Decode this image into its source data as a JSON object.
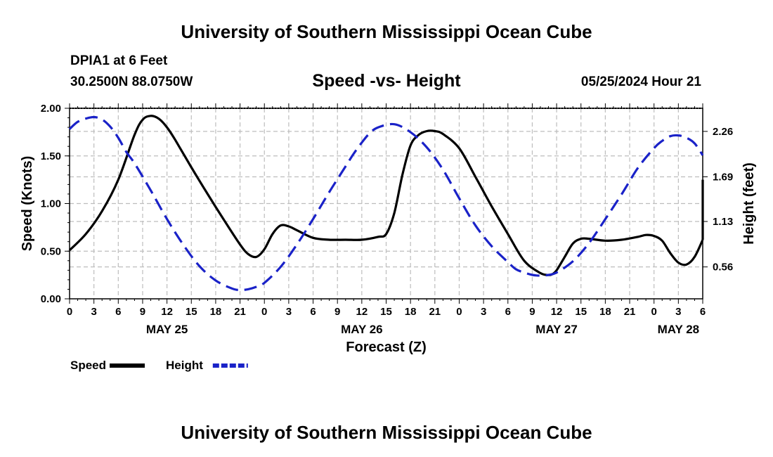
{
  "header": {
    "title": "University of Southern Mississippi Ocean Cube",
    "station": "DPIA1 at 6 Feet",
    "coords": "30.2500N  88.0750W",
    "timestamp": "05/25/2024 Hour 21"
  },
  "footer": {
    "title": "University of Southern Mississippi Ocean Cube"
  },
  "chart_data": {
    "type": "line",
    "title": "Speed -vs- Height",
    "xlabel": "Forecast (Z)",
    "ylabel": "Speed (Knots)",
    "y2label": "Height (feet)",
    "grid": true,
    "x_range_hours": [
      0,
      78
    ],
    "ylim": [
      0,
      2.0
    ],
    "y2lim": [
      0.16,
      2.55
    ],
    "y_ticks": [
      "0.00",
      "0.50",
      "1.00",
      "1.50",
      "2.00"
    ],
    "y2_ticks": [
      "0.56",
      "1.13",
      "1.69",
      "2.26"
    ],
    "x_tick_labels": [
      "0",
      "3",
      "6",
      "9",
      "12",
      "15",
      "18",
      "21",
      "0",
      "3",
      "6",
      "9",
      "12",
      "15",
      "18",
      "21",
      "0",
      "3",
      "6",
      "9",
      "12",
      "15",
      "18",
      "21",
      "0",
      "3",
      "6"
    ],
    "date_labels": [
      {
        "hour": 12,
        "label": "MAY 25"
      },
      {
        "hour": 36,
        "label": "MAY 26"
      },
      {
        "hour": 60,
        "label": "MAY 27"
      },
      {
        "hour": 75,
        "label": "MAY 28"
      }
    ],
    "series": [
      {
        "name": "Speed",
        "axis": "left",
        "color": "#000000",
        "dash": "solid",
        "x": [
          0,
          2,
          4,
          6,
          8,
          9,
          10,
          11,
          12,
          13,
          15,
          17,
          19,
          21,
          22,
          23,
          24,
          25,
          26,
          27,
          28,
          30,
          32,
          34,
          36,
          38,
          39,
          40,
          41,
          42,
          43,
          44,
          45,
          46,
          48,
          50,
          52,
          54,
          56,
          58,
          59,
          59.5,
          60,
          61,
          62,
          63,
          64,
          66,
          68,
          70,
          71,
          72,
          73,
          74,
          75,
          76,
          77,
          78
        ],
        "values": [
          0.51,
          0.68,
          0.92,
          1.25,
          1.72,
          1.88,
          1.92,
          1.89,
          1.8,
          1.67,
          1.38,
          1.1,
          0.83,
          0.57,
          0.47,
          0.44,
          0.52,
          0.68,
          0.77,
          0.76,
          0.72,
          0.64,
          0.62,
          0.62,
          0.62,
          0.65,
          0.68,
          0.9,
          1.3,
          1.61,
          1.72,
          1.76,
          1.76,
          1.73,
          1.58,
          1.28,
          0.97,
          0.68,
          0.4,
          0.27,
          0.25,
          0.26,
          0.3,
          0.44,
          0.58,
          0.63,
          0.63,
          0.61,
          0.62,
          0.65,
          0.67,
          0.66,
          0.61,
          0.48,
          0.38,
          0.36,
          0.44,
          0.62
        ],
        "extra": {
          "x": 78,
          "value": 1.25
        }
      },
      {
        "name": "Height",
        "axis": "right",
        "color": "#1a22c8",
        "dash": "dashed",
        "x": [
          0,
          1,
          2,
          3,
          4,
          5,
          6,
          7,
          8,
          10,
          12,
          14,
          16,
          18,
          20,
          21,
          22,
          23,
          24,
          26,
          28,
          30,
          32,
          34,
          35,
          36,
          37,
          38,
          40,
          42,
          44,
          46,
          48,
          50,
          52,
          54,
          55,
          56,
          57,
          58,
          59,
          60,
          62,
          64,
          66,
          68,
          70,
          72,
          73,
          74,
          75,
          76,
          77,
          78
        ],
        "values": [
          2.29,
          2.38,
          2.42,
          2.44,
          2.41,
          2.32,
          2.18,
          2.0,
          1.86,
          1.52,
          1.16,
          0.84,
          0.57,
          0.39,
          0.29,
          0.27,
          0.28,
          0.31,
          0.36,
          0.56,
          0.84,
          1.16,
          1.5,
          1.82,
          1.98,
          2.12,
          2.24,
          2.31,
          2.35,
          2.25,
          2.06,
          1.78,
          1.42,
          1.08,
          0.82,
          0.62,
          0.53,
          0.49,
          0.46,
          0.45,
          0.46,
          0.49,
          0.63,
          0.86,
          1.16,
          1.47,
          1.8,
          2.05,
          2.14,
          2.2,
          2.21,
          2.18,
          2.11,
          1.96
        ]
      }
    ],
    "legend": {
      "placement": "bottom-left",
      "items": [
        {
          "label": "Speed",
          "color": "#000000",
          "dash": "solid"
        },
        {
          "label": "Height",
          "color": "#1a22c8",
          "dash": "dashed"
        }
      ]
    }
  }
}
